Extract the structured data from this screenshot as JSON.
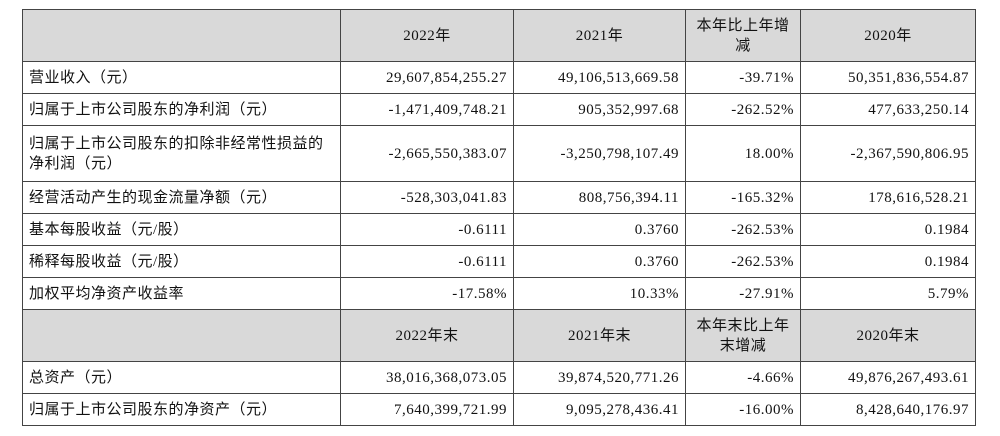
{
  "table": {
    "sections": [
      {
        "header": [
          "",
          "2022年",
          "2021年",
          "本年比上年增减",
          "2020年"
        ],
        "rows": [
          [
            "营业收入（元）",
            "29,607,854,255.27",
            "49,106,513,669.58",
            "-39.71%",
            "50,351,836,554.87"
          ],
          [
            "归属于上市公司股东的净利润（元）",
            "-1,471,409,748.21",
            "905,352,997.68",
            "-262.52%",
            "477,633,250.14"
          ],
          [
            "归属于上市公司股东的扣除非经常性损益的净利润（元）",
            "-2,665,550,383.07",
            "-3,250,798,107.49",
            "18.00%",
            "-2,367,590,806.95"
          ],
          [
            "经营活动产生的现金流量净额（元）",
            "-528,303,041.83",
            "808,756,394.11",
            "-165.32%",
            "178,616,528.21"
          ],
          [
            "基本每股收益（元/股）",
            "-0.6111",
            "0.3760",
            "-262.53%",
            "0.1984"
          ],
          [
            "稀释每股收益（元/股）",
            "-0.6111",
            "0.3760",
            "-262.53%",
            "0.1984"
          ],
          [
            "加权平均净资产收益率",
            "-17.58%",
            "10.33%",
            "-27.91%",
            "5.79%"
          ]
        ]
      },
      {
        "header": [
          "",
          "2022年末",
          "2021年末",
          "本年末比上年末增减",
          "2020年末"
        ],
        "rows": [
          [
            "总资产（元）",
            "38,016,368,073.05",
            "39,874,520,771.26",
            "-4.66%",
            "49,876,267,493.61"
          ],
          [
            "归属于上市公司股东的净资产（元）",
            "7,640,399,721.99",
            "9,095,278,436.41",
            "-16.00%",
            "8,428,640,176.97"
          ]
        ]
      }
    ]
  }
}
